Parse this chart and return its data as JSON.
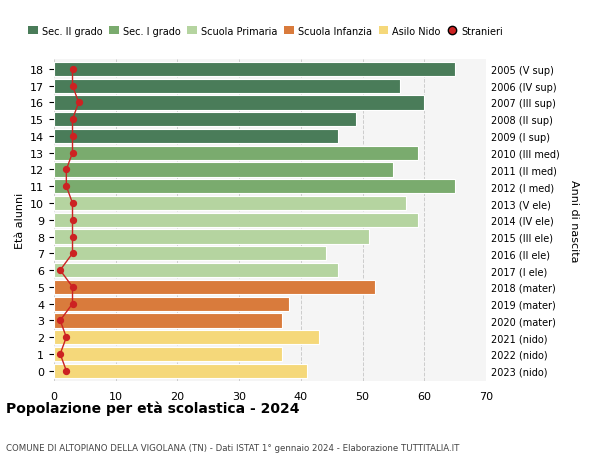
{
  "ages": [
    18,
    17,
    16,
    15,
    14,
    13,
    12,
    11,
    10,
    9,
    8,
    7,
    6,
    5,
    4,
    3,
    2,
    1,
    0
  ],
  "bar_values": [
    65,
    56,
    60,
    49,
    46,
    59,
    55,
    65,
    57,
    59,
    51,
    44,
    46,
    52,
    38,
    37,
    43,
    37,
    41
  ],
  "bar_colors": [
    "#4a7c59",
    "#4a7c59",
    "#4a7c59",
    "#4a7c59",
    "#4a7c59",
    "#7aab6e",
    "#7aab6e",
    "#7aab6e",
    "#b5d4a0",
    "#b5d4a0",
    "#b5d4a0",
    "#b5d4a0",
    "#b5d4a0",
    "#d97b3c",
    "#d97b3c",
    "#d97b3c",
    "#f5d87a",
    "#f5d87a",
    "#f5d87a"
  ],
  "stranieri_values": [
    3,
    3,
    4,
    3,
    3,
    3,
    2,
    2,
    3,
    3,
    3,
    3,
    1,
    3,
    3,
    1,
    2,
    1,
    2
  ],
  "right_labels": [
    "2005 (V sup)",
    "2006 (IV sup)",
    "2007 (III sup)",
    "2008 (II sup)",
    "2009 (I sup)",
    "2010 (III med)",
    "2011 (II med)",
    "2012 (I med)",
    "2013 (V ele)",
    "2014 (IV ele)",
    "2015 (III ele)",
    "2016 (II ele)",
    "2017 (I ele)",
    "2018 (mater)",
    "2019 (mater)",
    "2020 (mater)",
    "2021 (nido)",
    "2022 (nido)",
    "2023 (nido)"
  ],
  "legend_labels": [
    "Sec. II grado",
    "Sec. I grado",
    "Scuola Primaria",
    "Scuola Infanzia",
    "Asilo Nido",
    "Stranieri"
  ],
  "legend_colors": [
    "#4a7c59",
    "#7aab6e",
    "#b5d4a0",
    "#d97b3c",
    "#f5d87a",
    "#cc2222"
  ],
  "ylabel": "Età alunni",
  "right_axis_label": "Anni di nascita",
  "title": "Popolazione per età scolastica - 2024",
  "subtitle": "COMUNE DI ALTOPIANO DELLA VIGOLANA (TN) - Dati ISTAT 1° gennaio 2024 - Elaborazione TUTTITALIA.IT",
  "xlim": [
    0,
    70
  ],
  "xticks": [
    0,
    10,
    20,
    30,
    40,
    50,
    60,
    70
  ],
  "bar_edgecolor": "#ffffff",
  "stranieri_color": "#cc2222",
  "stranieri_line_color": "#cc2222",
  "bg_color": "#ffffff",
  "plot_bg_color": "#f5f5f5",
  "grid_color": "#cccccc"
}
